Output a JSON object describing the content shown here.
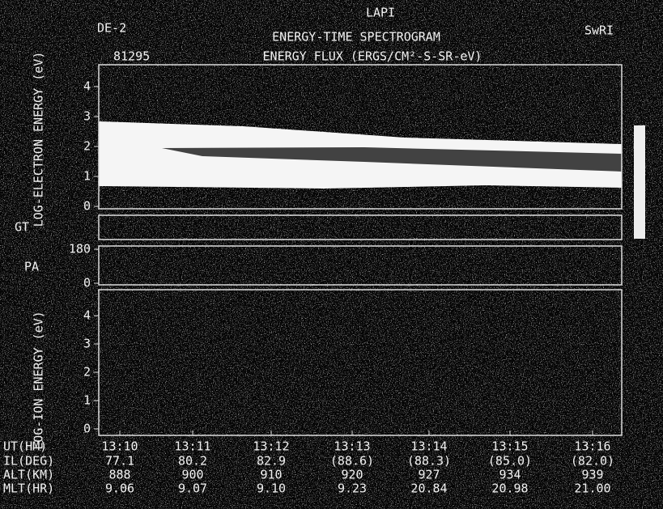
{
  "header": {
    "mission": "DE-2",
    "instrument": "LAPI",
    "institution": "SwRI",
    "title": "ENERGY-TIME SPECTROGRAM",
    "day": "81295",
    "subtitle": "ENERGY FLUX (ERGS/CM²-S-SR-eV)"
  },
  "panels": {
    "electron": {
      "label": "LOG-ELECTRON ENERGY (eV)",
      "ticks": [
        4,
        3,
        2,
        1,
        0
      ]
    },
    "gt": {
      "label": "GT"
    },
    "pa": {
      "label": "PA",
      "ticks": [
        180,
        0
      ]
    },
    "ion": {
      "label": "LOG-ION ENERGY (eV)",
      "ticks": [
        4,
        3,
        2,
        1,
        0
      ]
    }
  },
  "footer": {
    "rows": [
      {
        "label": "UT(HM)",
        "values": [
          "13:10",
          "13:11",
          "13:12",
          "13:13",
          "13:14",
          "13:15",
          "13:16"
        ]
      },
      {
        "label": "IL(DEG)",
        "values": [
          "77.1",
          "80.2",
          "82.9",
          "(88.6)",
          "(88.3)",
          "(85.0)",
          "(82.0)"
        ]
      },
      {
        "label": "ALT(KM)",
        "values": [
          "888",
          "900",
          "910",
          "920",
          "927",
          "934",
          "939"
        ]
      },
      {
        "label": "MLT(HR)",
        "values": [
          "9.06",
          "9.07",
          "9.10",
          "9.23",
          "20.84",
          "20.98",
          "21.00"
        ]
      }
    ]
  }
}
